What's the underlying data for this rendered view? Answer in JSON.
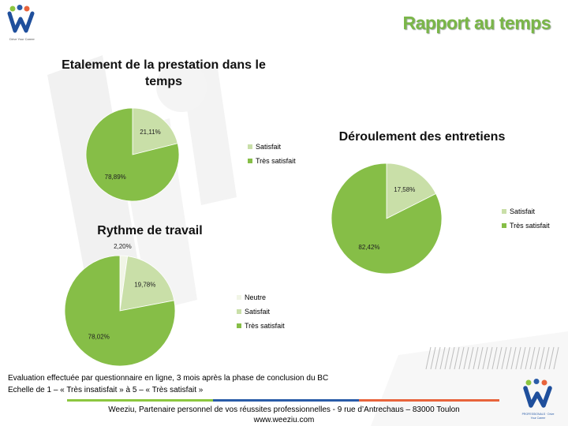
{
  "header": {
    "title": "Rapport au temps",
    "logo_tagline": "Drive Your Career",
    "corner_logo_tagline": "PROFESSIONALS · Drive Your Career"
  },
  "colors": {
    "title_green": "#7ab648",
    "satisfait": "#c9dfa8",
    "tres_satisfait": "#86be47",
    "neutre": "#f1f5e6",
    "bar_green": "#8cc63f",
    "bar_blue": "#2a5ca8",
    "bar_orange": "#e8643c"
  },
  "chart_data": [
    {
      "type": "pie",
      "title": "Etalement de la prestation dans le temps",
      "categories": [
        "Satisfait",
        "Très satisfait"
      ],
      "values": [
        21.11,
        78.89
      ],
      "value_labels": [
        "21,11%",
        "78,89%"
      ],
      "legend": [
        "Satisfait",
        "Très satisfait"
      ],
      "legend_position": "right"
    },
    {
      "type": "pie",
      "title": "Déroulement des entretiens",
      "categories": [
        "Satisfait",
        "Très satisfait"
      ],
      "values": [
        17.58,
        82.42
      ],
      "value_labels": [
        "17,58%",
        "82,42%"
      ],
      "legend": [
        "Satisfait",
        "Très satisfait"
      ],
      "legend_position": "right"
    },
    {
      "type": "pie",
      "title": "Rythme de travail",
      "categories": [
        "Neutre",
        "Satisfait",
        "Très satisfait"
      ],
      "values": [
        2.2,
        19.78,
        78.02
      ],
      "value_labels": [
        "2,20%",
        "19,78%",
        "78,02%"
      ],
      "legend": [
        "Neutre",
        "Satisfait",
        "Très satisfait"
      ],
      "legend_position": "right"
    }
  ],
  "footnotes": [
    "Evaluation effectuée par questionnaire en ligne, 3 mois après la phase de conclusion du BC",
    "Echelle de 1 – « Très insatisfait » à 5 – « Très satisfait »"
  ],
  "footer": {
    "line1": "Weeziu, Partenaire personnel de vos réussites professionnelles - 9 rue d’Antrechaus – 83000 Toulon",
    "line2": "www.weeziu.com"
  }
}
